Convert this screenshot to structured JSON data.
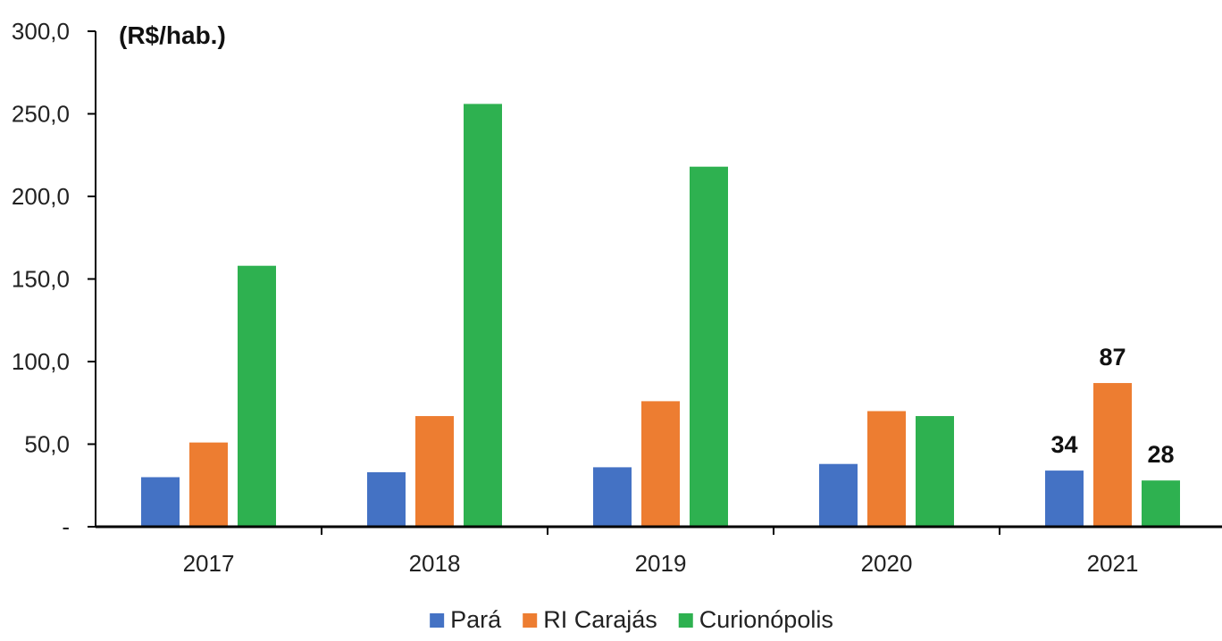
{
  "chart_data": {
    "type": "bar",
    "ylabel": "(R$/hab.)",
    "categories": [
      "2017",
      "2018",
      "2019",
      "2020",
      "2021"
    ],
    "ylim": [
      0,
      300
    ],
    "yticks": [
      0,
      50,
      100,
      150,
      200,
      250,
      300
    ],
    "ytick_labels": [
      "-",
      "50,0",
      "100,0",
      "150,0",
      "200,0",
      "250,0",
      "300,0"
    ],
    "grid": false,
    "legend_position": "bottom",
    "series": [
      {
        "name": "Pará",
        "color": "#4472C4",
        "values": [
          30,
          33,
          36,
          38,
          34
        ]
      },
      {
        "name": "RI Carajás",
        "color": "#ED7D31",
        "values": [
          51,
          67,
          76,
          70,
          87
        ]
      },
      {
        "name": "Curionópolis",
        "color": "#2EB150",
        "values": [
          158,
          256,
          218,
          67,
          28
        ]
      }
    ],
    "annotations": [
      {
        "category": "2021",
        "series": "Pará",
        "text": "34"
      },
      {
        "category": "2021",
        "series": "RI Carajás",
        "text": "87"
      },
      {
        "category": "2021",
        "series": "Curionópolis",
        "text": "28"
      }
    ]
  }
}
